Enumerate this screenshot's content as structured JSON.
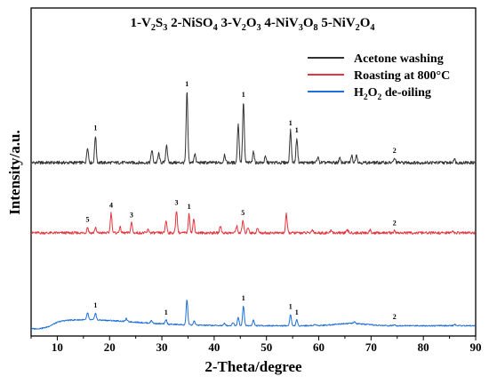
{
  "chart_data": {
    "type": "line",
    "title_parts": [
      {
        "text": "1-V"
      },
      {
        "text": "2",
        "sub": true
      },
      {
        "text": "S"
      },
      {
        "text": "3",
        "sub": true
      },
      {
        "text": " 2-NiSO"
      },
      {
        "text": "4",
        "sub": true
      },
      {
        "text": " 3-V"
      },
      {
        "text": "2",
        "sub": true
      },
      {
        "text": "O"
      },
      {
        "text": "3",
        "sub": true
      },
      {
        "text": " 4-NiV"
      },
      {
        "text": "3",
        "sub": true
      },
      {
        "text": "O"
      },
      {
        "text": "8",
        "sub": true
      },
      {
        "text": " 5-NiV"
      },
      {
        "text": "2",
        "sub": true
      },
      {
        "text": "O"
      },
      {
        "text": "4",
        "sub": true
      }
    ],
    "xlabel": "2-Theta/degree",
    "ylabel": "Intensity/a.u.",
    "xlim": [
      5,
      90
    ],
    "xticks": [
      10,
      20,
      30,
      40,
      50,
      60,
      70,
      80,
      90
    ],
    "grid": false,
    "legend_position": "top-right",
    "series": [
      {
        "key": "acetone",
        "name_parts": [
          {
            "text": "Acetone washing"
          }
        ],
        "color": "#333333",
        "baseline": 0,
        "peaks": [
          [
            15.8,
            0.22
          ],
          [
            17.3,
            0.38
          ],
          [
            28.1,
            0.18
          ],
          [
            29.4,
            0.13
          ],
          [
            30.9,
            0.26
          ],
          [
            34.8,
            1.0
          ],
          [
            36.3,
            0.13
          ],
          [
            42.0,
            0.12
          ],
          [
            44.6,
            0.55
          ],
          [
            45.6,
            0.85
          ],
          [
            47.5,
            0.16
          ],
          [
            49.8,
            0.08
          ],
          [
            54.6,
            0.45
          ],
          [
            55.8,
            0.35
          ],
          [
            59.8,
            0.08
          ],
          [
            64.0,
            0.06
          ],
          [
            66.3,
            0.1
          ],
          [
            67.2,
            0.12
          ],
          [
            74.5,
            0.06
          ],
          [
            85.9,
            0.06
          ]
        ],
        "labels": [
          {
            "x": 17.3,
            "text": "1"
          },
          {
            "x": 34.8,
            "text": "1"
          },
          {
            "x": 45.6,
            "text": "1"
          },
          {
            "x": 54.6,
            "text": "1"
          },
          {
            "x": 55.8,
            "text": "1"
          },
          {
            "x": 74.5,
            "text": "2"
          }
        ]
      },
      {
        "key": "roasting",
        "name_parts": [
          {
            "text": "Roasting at 800°C"
          }
        ],
        "color": "#e8343c",
        "baseline": 0,
        "peaks": [
          [
            15.8,
            0.1
          ],
          [
            17.3,
            0.09
          ],
          [
            20.3,
            0.35
          ],
          [
            22.0,
            0.1
          ],
          [
            24.2,
            0.18
          ],
          [
            27.4,
            0.06
          ],
          [
            30.8,
            0.22
          ],
          [
            32.8,
            0.4
          ],
          [
            35.2,
            0.33
          ],
          [
            36.1,
            0.24
          ],
          [
            41.2,
            0.12
          ],
          [
            44.3,
            0.12
          ],
          [
            45.5,
            0.22
          ],
          [
            46.5,
            0.1
          ],
          [
            48.3,
            0.08
          ],
          [
            53.8,
            0.33
          ],
          [
            58.8,
            0.06
          ],
          [
            62.4,
            0.05
          ],
          [
            65.5,
            0.05
          ],
          [
            69.8,
            0.05
          ],
          [
            74.5,
            0.04
          ],
          [
            85.5,
            0.04
          ]
        ],
        "labels": [
          {
            "x": 15.8,
            "text": "5"
          },
          {
            "x": 20.3,
            "text": "4"
          },
          {
            "x": 24.2,
            "text": "3"
          },
          {
            "x": 32.8,
            "text": "3"
          },
          {
            "x": 35.2,
            "text": "1"
          },
          {
            "x": 45.5,
            "text": "5"
          },
          {
            "x": 74.5,
            "text": "2"
          }
        ]
      },
      {
        "key": "h2o2",
        "name_parts": [
          {
            "text": "H"
          },
          {
            "text": "2",
            "sub": true
          },
          {
            "text": "O"
          },
          {
            "text": "2",
            "sub": true
          },
          {
            "text": " de-oiling"
          }
        ],
        "color": "#1e6fd9",
        "baseline": 0.32,
        "peaks": [
          [
            15.8,
            0.25
          ],
          [
            17.3,
            0.25
          ],
          [
            23.2,
            0.1
          ],
          [
            28.0,
            0.1
          ],
          [
            30.8,
            0.15
          ],
          [
            34.8,
            0.9
          ],
          [
            36.2,
            0.15
          ],
          [
            42.0,
            0.08
          ],
          [
            43.6,
            0.12
          ],
          [
            44.6,
            0.3
          ],
          [
            45.6,
            0.7
          ],
          [
            47.5,
            0.2
          ],
          [
            54.6,
            0.4
          ],
          [
            55.8,
            0.2
          ],
          [
            59.3,
            0.06
          ],
          [
            66.8,
            0.06
          ],
          [
            74.5,
            0.05
          ],
          [
            86.0,
            0.05
          ]
        ],
        "labels": [
          {
            "x": 17.3,
            "text": "1"
          },
          {
            "x": 30.8,
            "text": "1"
          },
          {
            "x": 45.6,
            "text": "1"
          },
          {
            "x": 54.6,
            "text": "1"
          },
          {
            "x": 55.8,
            "text": "1"
          },
          {
            "x": 74.5,
            "text": "2"
          }
        ]
      }
    ]
  }
}
